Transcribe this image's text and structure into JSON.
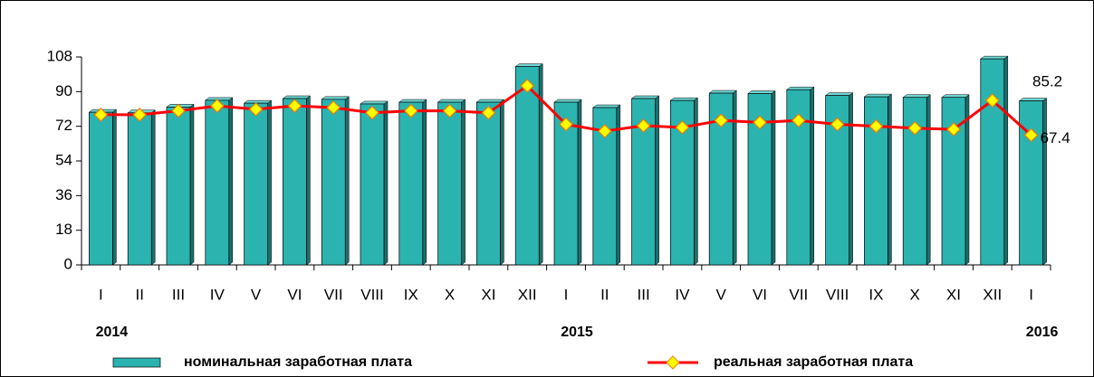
{
  "chart_data": {
    "type": "bar_line",
    "categories": [
      "I",
      "II",
      "III",
      "IV",
      "V",
      "VI",
      "VII",
      "VIII",
      "IX",
      "X",
      "XI",
      "XII",
      "I",
      "II",
      "III",
      "IV",
      "V",
      "VI",
      "VII",
      "VIII",
      "IX",
      "X",
      "XI",
      "XII",
      "I"
    ],
    "years": [
      "2014",
      "2015",
      "2016"
    ],
    "series": [
      {
        "name": "номинальная заработная плата",
        "type": "bar",
        "color": "#2bb3b0",
        "values": [
          79.3,
          79,
          82,
          85.5,
          84,
          86.4,
          86,
          83.6,
          84.5,
          84.5,
          84.5,
          103,
          84.5,
          81.7,
          86.4,
          85.4,
          89.2,
          89,
          91,
          88,
          87.3,
          87,
          87,
          107,
          85.2
        ],
        "value_labels": [
          null,
          null,
          null,
          null,
          null,
          null,
          null,
          null,
          null,
          null,
          null,
          null,
          null,
          null,
          null,
          null,
          null,
          null,
          null,
          null,
          null,
          null,
          null,
          null,
          "85.2"
        ]
      },
      {
        "name": "реальная заработная плата",
        "type": "line",
        "color": "#ff0000",
        "marker_color": "#ffff00",
        "values": [
          78,
          78,
          80,
          82.6,
          80.8,
          82.6,
          81.7,
          79,
          80,
          80,
          79,
          93,
          73,
          69.5,
          72.3,
          71.4,
          75,
          74,
          75,
          73,
          72,
          71,
          70.4,
          85.4,
          67.4
        ],
        "value_labels": [
          null,
          null,
          null,
          null,
          null,
          null,
          null,
          null,
          null,
          null,
          null,
          null,
          null,
          null,
          null,
          null,
          null,
          null,
          null,
          null,
          null,
          null,
          null,
          null,
          "67.4"
        ]
      }
    ],
    "ylim": [
      0,
      108
    ],
    "yticks": [
      0,
      18,
      36,
      54,
      72,
      90,
      108
    ]
  }
}
